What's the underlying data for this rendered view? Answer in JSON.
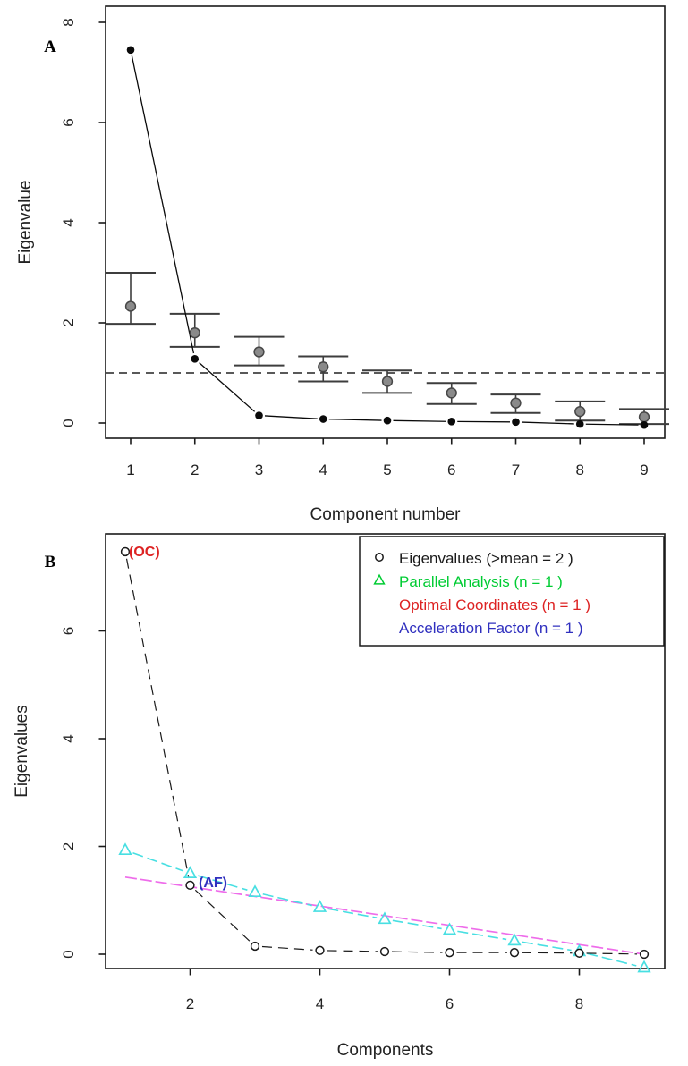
{
  "figure": {
    "background": "#ffffff",
    "panel_labels": [
      "A",
      "B"
    ]
  },
  "chart_data": [
    {
      "type": "line",
      "panel_label": "A",
      "title": "",
      "xlabel": "Component number",
      "ylabel": "Eigenvalue",
      "x": [
        1,
        2,
        3,
        4,
        5,
        6,
        7,
        8,
        9
      ],
      "xticks": [
        "1",
        "2",
        "3",
        "4",
        "5",
        "6",
        "7",
        "8",
        "9"
      ],
      "yticks": [
        "0",
        "2",
        "4",
        "6",
        "8"
      ],
      "ylim": [
        -0.35,
        8.45
      ],
      "grid": false,
      "reference_line": {
        "y": 1,
        "style": "dashed",
        "color": "#222222"
      },
      "series": [
        {
          "name": "observed-eigenvalues",
          "marker": "filled-circle",
          "color": "#0a0a0a",
          "line": "solid",
          "values": [
            7.45,
            1.28,
            0.15,
            0.08,
            0.05,
            0.03,
            0.02,
            -0.02,
            -0.04
          ]
        },
        {
          "name": "resampled-eigenvalues-with-ci",
          "marker": "filled-circle",
          "color": "#8a8a8a",
          "marker_edge": "#474747",
          "line": "none",
          "values": [
            2.33,
            1.8,
            1.42,
            1.12,
            0.83,
            0.6,
            0.4,
            0.23,
            0.12
          ],
          "error_low": [
            1.98,
            1.52,
            1.15,
            0.83,
            0.6,
            0.38,
            0.2,
            0.05,
            -0.02
          ],
          "error_high": [
            3.0,
            2.18,
            1.72,
            1.33,
            1.05,
            0.8,
            0.57,
            0.43,
            0.28
          ],
          "error_color": "#3d3d3d"
        }
      ]
    },
    {
      "type": "line",
      "panel_label": "B",
      "title": "",
      "xlabel": "Components",
      "ylabel": "Eigenvalues",
      "x": [
        1,
        2,
        3,
        4,
        5,
        6,
        7,
        8,
        9
      ],
      "xticks": [
        "2",
        "4",
        "6",
        "8"
      ],
      "yticks": [
        "0",
        "2",
        "4",
        "6"
      ],
      "ylim": [
        -0.3,
        7.8
      ],
      "grid": false,
      "legend": {
        "position": "top-right",
        "items": [
          {
            "label": "Eigenvalues (>mean  =  2 )",
            "color": "#1a1a1a",
            "marker": "open-circle",
            "marker_color": "#1a1a1a"
          },
          {
            "label": "Parallel Analysis (n =  1 )",
            "color": "#00CC33",
            "marker": "open-triangle",
            "marker_color": "#00CC33"
          },
          {
            "label": "Optimal Coordinates (n =  1 )",
            "color": "#DD2222",
            "marker": "none",
            "marker_color": "#DD2222"
          },
          {
            "label": "Acceleration Factor (n =  1 )",
            "color": "#3030BF",
            "marker": "none",
            "marker_color": "#3030BF"
          }
        ]
      },
      "series": [
        {
          "name": "eigenvalues",
          "marker": "open-circle",
          "color": "#1a1a1a",
          "line": "dashed",
          "values": [
            7.47,
            1.28,
            0.15,
            0.07,
            0.05,
            0.03,
            0.03,
            0.02,
            0.0
          ]
        },
        {
          "name": "parallel-analysis",
          "marker": "open-triangle",
          "color": "#48DFE2",
          "line": "dashed",
          "values": [
            1.93,
            1.5,
            1.15,
            0.87,
            0.65,
            0.45,
            0.25,
            0.05,
            -0.25
          ]
        },
        {
          "name": "optimal-coordinates-line",
          "marker": "none",
          "color": "#EE6CEA",
          "line": "straight",
          "from": [
            1,
            1.43
          ],
          "to": [
            9,
            0.0
          ]
        }
      ],
      "annotations": [
        {
          "text": "(OC)",
          "color": "#DD2222",
          "at_component": 1
        },
        {
          "text": "(AF)",
          "color": "#3030BF",
          "at_component": 2
        }
      ]
    }
  ]
}
